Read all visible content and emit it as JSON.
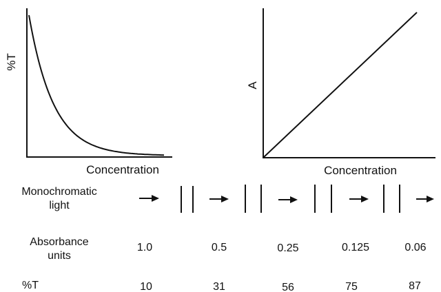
{
  "chart_data": [
    {
      "type": "line",
      "ylabel": "%T",
      "xlabel": "Concentration",
      "shape": "exponential decay",
      "x": [
        0,
        0.5,
        1,
        2,
        3,
        4,
        6,
        8,
        10
      ],
      "y": [
        100,
        60,
        40,
        22,
        13,
        8,
        4,
        2,
        1
      ]
    },
    {
      "type": "line",
      "ylabel": "A",
      "xlabel": "Concentration",
      "shape": "linear",
      "x": [
        0,
        10
      ],
      "y": [
        0,
        10
      ]
    }
  ],
  "table": {
    "row_labels": {
      "light": [
        "Monochromatic",
        "light"
      ],
      "absorbance": [
        "Absorbance",
        "units"
      ],
      "percent_t": "%T"
    },
    "absorbance_values": [
      "1.0",
      "0.5",
      "0.25",
      "0.125",
      "0.06"
    ],
    "percent_t_values": [
      "10",
      "31",
      "56",
      "75",
      "87"
    ]
  }
}
